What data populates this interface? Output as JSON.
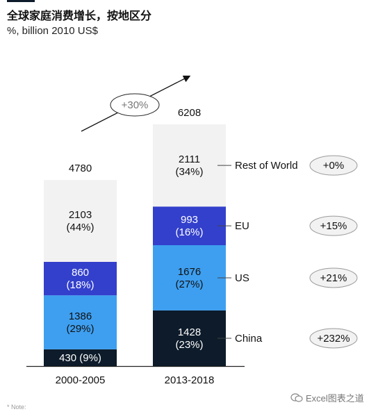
{
  "header": {
    "title": "全球家庭消费增长，按地区分",
    "subtitle": "%, billion 2010 US$"
  },
  "footer": {
    "note": "* Note:",
    "watermark": "Excel图表之道",
    "watermark_icon": "wechat-icon"
  },
  "chart_data": {
    "type": "bar",
    "stacked": true,
    "categories": [
      "2000-2005",
      "2013-2018"
    ],
    "totals": [
      "4780",
      "6208"
    ],
    "series": [
      {
        "name": "China",
        "color": "#0d1b2a",
        "text_color": "#ffffff",
        "values": [
          430,
          1428
        ],
        "labels": [
          "430 (9%)",
          "1428\n(23%)"
        ],
        "growth": "+232%"
      },
      {
        "name": "US",
        "color": "#3e9ff0",
        "text_color": "#111111",
        "values": [
          1386,
          1676
        ],
        "labels": [
          "1386\n(29%)",
          "1676\n(27%)"
        ],
        "growth": "+21%"
      },
      {
        "name": "EU",
        "color": "#3340cc",
        "text_color": "#ffffff",
        "values": [
          860,
          993
        ],
        "labels": [
          "860\n(18%)",
          "993\n(16%)"
        ],
        "growth": "+15%"
      },
      {
        "name": "Rest of World",
        "color": "#f2f2f2",
        "text_color": "#111111",
        "values": [
          2103,
          2111
        ],
        "labels": [
          "2103\n(44%)",
          "2111\n(34%)"
        ],
        "growth": "+0%"
      }
    ],
    "overall_growth": "+30%",
    "legend": "right",
    "grid": false
  }
}
